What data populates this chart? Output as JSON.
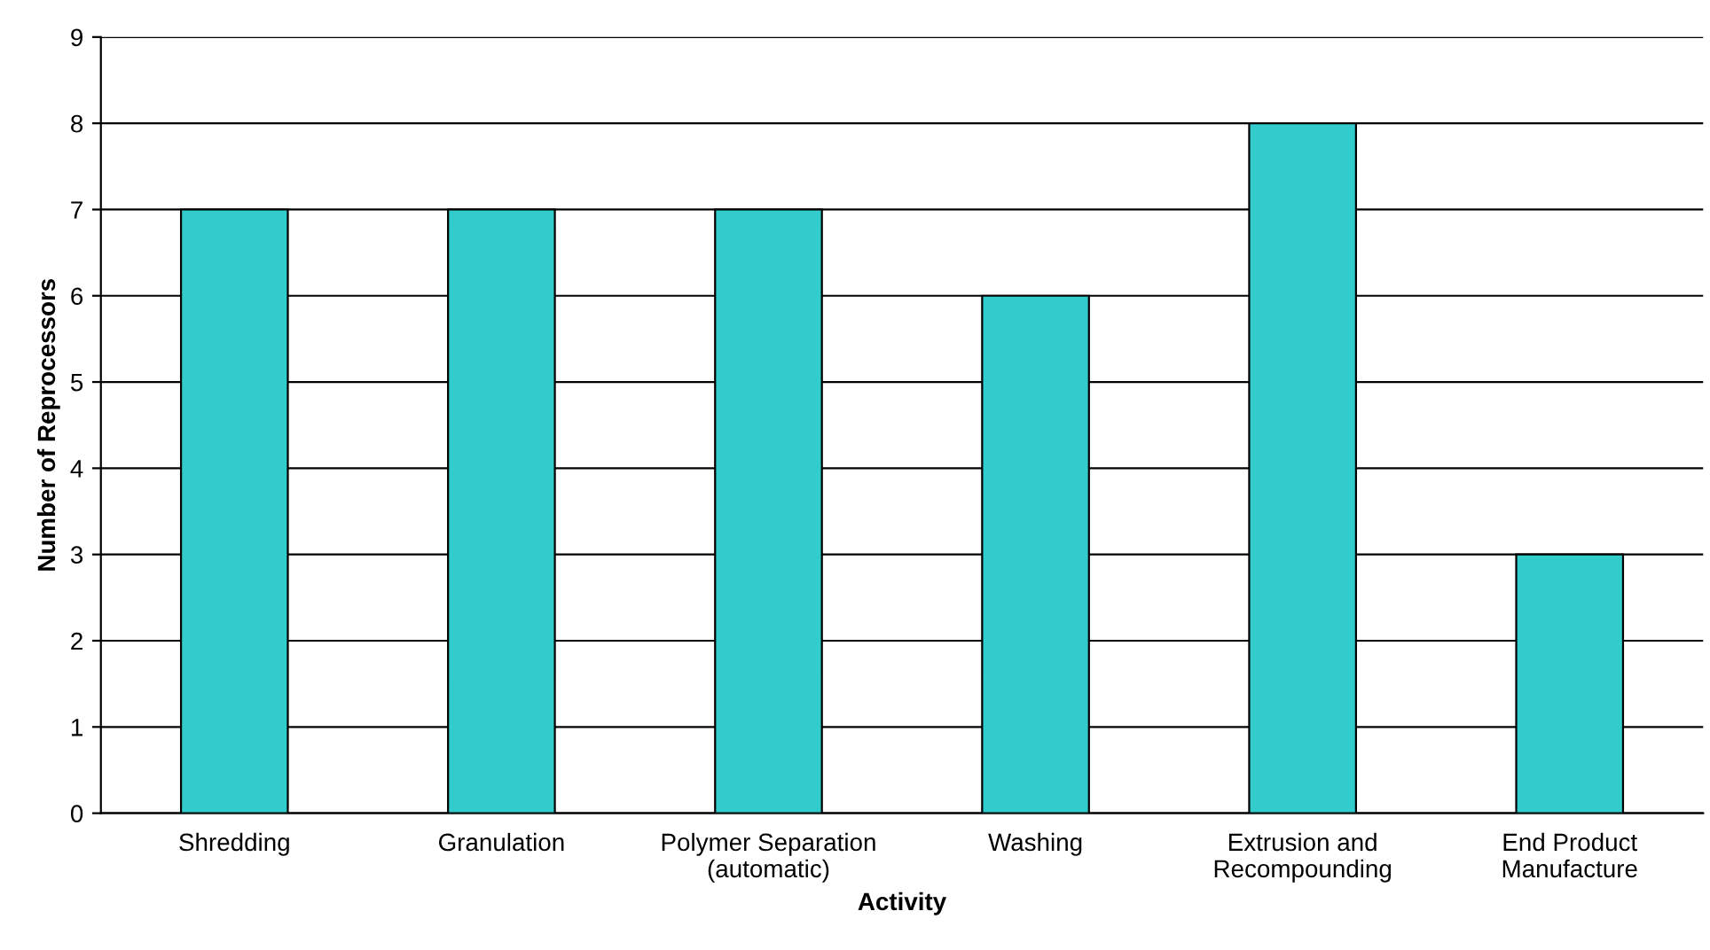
{
  "chart_data": {
    "type": "bar",
    "xlabel": "Activity",
    "ylabel": "Number of Reprocessors",
    "categories": [
      "Shredding",
      "Granulation",
      "Polymer Separation\n(automatic)",
      "Washing",
      "Extrusion and\nRecompounding",
      "End Product\nManufacture"
    ],
    "values": [
      7,
      7,
      7,
      6,
      8,
      3
    ],
    "color": "#33cccc",
    "ylim": [
      0,
      9
    ],
    "yticks": [
      0,
      1,
      2,
      3,
      4,
      5,
      6,
      7,
      8,
      9
    ],
    "grid": "y",
    "legend": false
  }
}
